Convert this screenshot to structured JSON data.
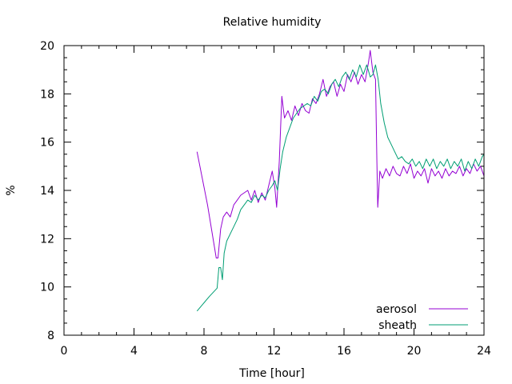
{
  "chart_data": {
    "type": "line",
    "title": "Relative humidity",
    "xlabel": "Time [hour]",
    "ylabel": "%",
    "xlim": [
      0,
      24
    ],
    "ylim": [
      8,
      20
    ],
    "x_ticks": [
      0,
      4,
      8,
      12,
      16,
      20,
      24
    ],
    "y_ticks": [
      8,
      10,
      12,
      14,
      16,
      18,
      20
    ],
    "grid": false,
    "legend_position": "bottom-right",
    "series": [
      {
        "name": "aerosol",
        "color": "#9400d3",
        "points": [
          [
            7.6,
            15.6
          ],
          [
            8.2,
            13.4
          ],
          [
            8.7,
            11.2
          ],
          [
            8.8,
            11.2
          ],
          [
            8.95,
            12.4
          ],
          [
            9.1,
            12.9
          ],
          [
            9.3,
            13.1
          ],
          [
            9.5,
            12.9
          ],
          [
            9.7,
            13.4
          ],
          [
            9.9,
            13.6
          ],
          [
            10.1,
            13.8
          ],
          [
            10.3,
            13.9
          ],
          [
            10.5,
            14.0
          ],
          [
            10.7,
            13.6
          ],
          [
            10.9,
            14.0
          ],
          [
            11.1,
            13.5
          ],
          [
            11.3,
            13.9
          ],
          [
            11.5,
            13.6
          ],
          [
            11.7,
            14.2
          ],
          [
            11.9,
            14.8
          ],
          [
            12.05,
            14.1
          ],
          [
            12.15,
            13.3
          ],
          [
            12.3,
            15.2
          ],
          [
            12.45,
            17.9
          ],
          [
            12.6,
            17.0
          ],
          [
            12.8,
            17.3
          ],
          [
            13.0,
            16.9
          ],
          [
            13.2,
            17.5
          ],
          [
            13.4,
            17.1
          ],
          [
            13.6,
            17.6
          ],
          [
            13.8,
            17.3
          ],
          [
            14.0,
            17.2
          ],
          [
            14.2,
            17.8
          ],
          [
            14.4,
            17.6
          ],
          [
            14.6,
            18.0
          ],
          [
            14.8,
            18.6
          ],
          [
            15.0,
            17.9
          ],
          [
            15.2,
            18.3
          ],
          [
            15.4,
            18.5
          ],
          [
            15.6,
            17.9
          ],
          [
            15.8,
            18.4
          ],
          [
            16.0,
            18.1
          ],
          [
            16.2,
            18.8
          ],
          [
            16.4,
            18.5
          ],
          [
            16.6,
            18.9
          ],
          [
            16.8,
            18.4
          ],
          [
            17.0,
            18.8
          ],
          [
            17.2,
            18.5
          ],
          [
            17.4,
            19.3
          ],
          [
            17.5,
            19.8
          ],
          [
            17.65,
            18.9
          ],
          [
            17.8,
            18.6
          ],
          [
            17.88,
            15.2
          ],
          [
            17.93,
            13.3
          ],
          [
            18.05,
            14.8
          ],
          [
            18.2,
            14.5
          ],
          [
            18.4,
            14.9
          ],
          [
            18.6,
            14.6
          ],
          [
            18.8,
            15.0
          ],
          [
            19.0,
            14.7
          ],
          [
            19.2,
            14.6
          ],
          [
            19.4,
            15.0
          ],
          [
            19.6,
            14.7
          ],
          [
            19.8,
            15.1
          ],
          [
            20.0,
            14.5
          ],
          [
            20.2,
            14.8
          ],
          [
            20.4,
            14.6
          ],
          [
            20.6,
            14.9
          ],
          [
            20.8,
            14.3
          ],
          [
            21.0,
            14.9
          ],
          [
            21.2,
            14.6
          ],
          [
            21.4,
            14.8
          ],
          [
            21.6,
            14.5
          ],
          [
            21.8,
            14.9
          ],
          [
            22.0,
            14.6
          ],
          [
            22.2,
            14.8
          ],
          [
            22.4,
            14.7
          ],
          [
            22.6,
            15.0
          ],
          [
            22.8,
            14.6
          ],
          [
            23.0,
            14.9
          ],
          [
            23.2,
            14.7
          ],
          [
            23.4,
            15.1
          ],
          [
            23.6,
            14.8
          ],
          [
            23.8,
            15.0
          ],
          [
            24.0,
            14.6
          ]
        ]
      },
      {
        "name": "sheath",
        "color": "#009e73",
        "points": [
          [
            7.6,
            9.0
          ],
          [
            8.3,
            9.6
          ],
          [
            8.75,
            9.95
          ],
          [
            8.85,
            10.8
          ],
          [
            8.95,
            10.8
          ],
          [
            9.05,
            10.3
          ],
          [
            9.15,
            11.4
          ],
          [
            9.3,
            11.9
          ],
          [
            9.5,
            12.2
          ],
          [
            9.7,
            12.5
          ],
          [
            9.9,
            12.8
          ],
          [
            10.1,
            13.2
          ],
          [
            10.3,
            13.4
          ],
          [
            10.5,
            13.6
          ],
          [
            10.7,
            13.5
          ],
          [
            10.9,
            13.8
          ],
          [
            11.1,
            13.6
          ],
          [
            11.3,
            13.8
          ],
          [
            11.5,
            13.7
          ],
          [
            11.7,
            14.0
          ],
          [
            11.9,
            14.2
          ],
          [
            12.05,
            14.4
          ],
          [
            12.2,
            14.0
          ],
          [
            12.35,
            14.9
          ],
          [
            12.5,
            15.6
          ],
          [
            12.7,
            16.2
          ],
          [
            12.9,
            16.6
          ],
          [
            13.1,
            17.0
          ],
          [
            13.3,
            17.2
          ],
          [
            13.5,
            17.4
          ],
          [
            13.7,
            17.5
          ],
          [
            13.9,
            17.6
          ],
          [
            14.1,
            17.5
          ],
          [
            14.3,
            17.9
          ],
          [
            14.5,
            17.7
          ],
          [
            14.7,
            18.1
          ],
          [
            14.9,
            18.2
          ],
          [
            15.1,
            18.0
          ],
          [
            15.3,
            18.4
          ],
          [
            15.5,
            18.6
          ],
          [
            15.7,
            18.3
          ],
          [
            15.9,
            18.7
          ],
          [
            16.1,
            18.9
          ],
          [
            16.3,
            18.6
          ],
          [
            16.5,
            19.0
          ],
          [
            16.7,
            18.7
          ],
          [
            16.9,
            19.2
          ],
          [
            17.1,
            18.8
          ],
          [
            17.3,
            19.2
          ],
          [
            17.5,
            18.7
          ],
          [
            17.65,
            18.8
          ],
          [
            17.8,
            19.2
          ],
          [
            17.95,
            18.6
          ],
          [
            18.1,
            17.6
          ],
          [
            18.3,
            16.8
          ],
          [
            18.5,
            16.2
          ],
          [
            18.7,
            15.9
          ],
          [
            18.9,
            15.6
          ],
          [
            19.1,
            15.3
          ],
          [
            19.3,
            15.4
          ],
          [
            19.5,
            15.2
          ],
          [
            19.7,
            15.1
          ],
          [
            19.9,
            15.3
          ],
          [
            20.1,
            15.0
          ],
          [
            20.3,
            15.2
          ],
          [
            20.5,
            14.9
          ],
          [
            20.7,
            15.3
          ],
          [
            20.9,
            15.0
          ],
          [
            21.1,
            15.3
          ],
          [
            21.3,
            14.9
          ],
          [
            21.5,
            15.2
          ],
          [
            21.7,
            15.0
          ],
          [
            21.9,
            15.3
          ],
          [
            22.1,
            14.9
          ],
          [
            22.3,
            15.2
          ],
          [
            22.5,
            15.0
          ],
          [
            22.7,
            15.3
          ],
          [
            22.9,
            14.8
          ],
          [
            23.1,
            15.2
          ],
          [
            23.3,
            14.9
          ],
          [
            23.5,
            15.3
          ],
          [
            23.7,
            15.0
          ],
          [
            23.9,
            15.4
          ],
          [
            24.0,
            15.5
          ]
        ]
      }
    ]
  }
}
